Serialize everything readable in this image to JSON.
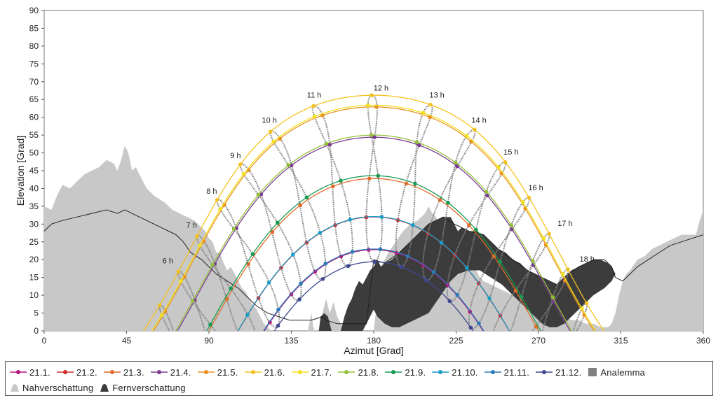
{
  "chart_data": {
    "type": "line",
    "xlabel": "Azimut [Grad]",
    "ylabel": "Elevation [Grad]",
    "xlim": [
      0,
      360
    ],
    "ylim": [
      0,
      90
    ],
    "x_ticks": [
      "0",
      "45",
      "90",
      "135",
      "180",
      "225",
      "270",
      "315",
      "360"
    ],
    "y_ticks": [
      "0",
      "5",
      "10",
      "15",
      "20",
      "25",
      "30",
      "35",
      "40",
      "45",
      "50",
      "55",
      "60",
      "65",
      "70",
      "75",
      "80",
      "85",
      "90"
    ],
    "grid": false,
    "legend_position": "bottom",
    "series": [
      {
        "name": "21.1.",
        "color": "#b5157a",
        "decl": -20.0,
        "eot": -11
      },
      {
        "name": "21.2.",
        "color": "#d22d2d",
        "decl": -10.8,
        "eot": -14
      },
      {
        "name": "21.3.",
        "color": "#e06a28",
        "decl": 0.0,
        "eot": -7
      },
      {
        "name": "21.4.",
        "color": "#7a3a92",
        "decl": 11.6,
        "eot": 1
      },
      {
        "name": "21.5.",
        "color": "#e89020",
        "decl": 20.1,
        "eot": 3
      },
      {
        "name": "21.6.",
        "color": "#f4c21e",
        "decl": 23.4,
        "eot": -2
      },
      {
        "name": "21.7.",
        "color": "#f2e11c",
        "decl": 20.6,
        "eot": -6
      },
      {
        "name": "21.8.",
        "color": "#93c03a",
        "decl": 12.2,
        "eot": -3
      },
      {
        "name": "21.9.",
        "color": "#159a52",
        "decl": 0.8,
        "eot": 7
      },
      {
        "name": "21.10.",
        "color": "#1a9ec7",
        "decl": -10.7,
        "eot": 15
      },
      {
        "name": "21.11.",
        "color": "#2a7ab8",
        "decl": -19.8,
        "eot": 14
      },
      {
        "name": "21.12.",
        "color": "#3d4891",
        "decl": -23.4,
        "eot": 2
      }
    ],
    "analemma": {
      "name": "Analemma",
      "color": "#808080"
    },
    "near_shading": {
      "name": "Nahverschattung",
      "color": "#c8c8c8",
      "points": [
        [
          0,
          35
        ],
        [
          4,
          34
        ],
        [
          7,
          38
        ],
        [
          10,
          41
        ],
        [
          14,
          40
        ],
        [
          18,
          42
        ],
        [
          22,
          44
        ],
        [
          26,
          45
        ],
        [
          30,
          46
        ],
        [
          34,
          48
        ],
        [
          38,
          47
        ],
        [
          40,
          45
        ],
        [
          42,
          48
        ],
        [
          44,
          52
        ],
        [
          46,
          50
        ],
        [
          48,
          45
        ],
        [
          50,
          46
        ],
        [
          52,
          44
        ],
        [
          54,
          42
        ],
        [
          56,
          40
        ],
        [
          58,
          39
        ],
        [
          60,
          38
        ],
        [
          63,
          37
        ],
        [
          66,
          36
        ],
        [
          70,
          34
        ],
        [
          74,
          33
        ],
        [
          78,
          32
        ],
        [
          82,
          31
        ],
        [
          86,
          29
        ],
        [
          88,
          28
        ],
        [
          90,
          26
        ],
        [
          92,
          25
        ],
        [
          94,
          22
        ],
        [
          96,
          22
        ],
        [
          98,
          19
        ],
        [
          100,
          17
        ],
        [
          102,
          18
        ],
        [
          104,
          16
        ],
        [
          106,
          14
        ],
        [
          108,
          12
        ],
        [
          110,
          11
        ],
        [
          113,
          8
        ],
        [
          116,
          6
        ],
        [
          118,
          4
        ],
        [
          120,
          2
        ],
        [
          122,
          1
        ],
        [
          124,
          0
        ],
        [
          140,
          0
        ],
        [
          144,
          0
        ],
        [
          146,
          5
        ],
        [
          147,
          1
        ],
        [
          148,
          0
        ],
        [
          150,
          0
        ],
        [
          152,
          5
        ],
        [
          154,
          9
        ],
        [
          156,
          5
        ],
        [
          158,
          8
        ],
        [
          160,
          4
        ],
        [
          162,
          2
        ],
        [
          164,
          0
        ],
        [
          180,
          0
        ],
        [
          184,
          18
        ],
        [
          188,
          22
        ],
        [
          192,
          25
        ],
        [
          196,
          28
        ],
        [
          200,
          30
        ],
        [
          204,
          31
        ],
        [
          208,
          33
        ],
        [
          210,
          35
        ],
        [
          212,
          33
        ],
        [
          214,
          32
        ],
        [
          216,
          30
        ],
        [
          218,
          28
        ],
        [
          220,
          27
        ],
        [
          222,
          25
        ],
        [
          224,
          23
        ],
        [
          226,
          22
        ],
        [
          228,
          23
        ],
        [
          230,
          21
        ],
        [
          232,
          20
        ],
        [
          234,
          18
        ],
        [
          236,
          17
        ],
        [
          238,
          15
        ],
        [
          240,
          14
        ],
        [
          244,
          13
        ],
        [
          248,
          12
        ],
        [
          252,
          11
        ],
        [
          256,
          10
        ],
        [
          260,
          9
        ],
        [
          264,
          8
        ],
        [
          268,
          7
        ],
        [
          272,
          6
        ],
        [
          276,
          6
        ],
        [
          280,
          5
        ],
        [
          284,
          4
        ],
        [
          288,
          3
        ],
        [
          292,
          3
        ],
        [
          296,
          2
        ],
        [
          300,
          2
        ],
        [
          304,
          1
        ],
        [
          308,
          1
        ],
        [
          310,
          2
        ],
        [
          312,
          5
        ],
        [
          314,
          10
        ],
        [
          316,
          14
        ],
        [
          318,
          16
        ],
        [
          320,
          17
        ],
        [
          324,
          20
        ],
        [
          328,
          21
        ],
        [
          332,
          23
        ],
        [
          336,
          24
        ],
        [
          340,
          25
        ],
        [
          344,
          26
        ],
        [
          348,
          27
        ],
        [
          352,
          27
        ],
        [
          356,
          27
        ],
        [
          358,
          31
        ],
        [
          360,
          34
        ]
      ]
    },
    "far_shading": {
      "name": "Fernverschattung",
      "color": "#3c3c3c",
      "points": [
        [
          150,
          0
        ],
        [
          151,
          4
        ],
        [
          153,
          5
        ],
        [
          155,
          4
        ],
        [
          157,
          0
        ],
        [
          162,
          0
        ],
        [
          164,
          4
        ],
        [
          166,
          7
        ],
        [
          168,
          9
        ],
        [
          170,
          12
        ],
        [
          172,
          14
        ],
        [
          174,
          13
        ],
        [
          176,
          15
        ],
        [
          178,
          17
        ],
        [
          180,
          18
        ],
        [
          182,
          20
        ],
        [
          184,
          18
        ],
        [
          186,
          19
        ],
        [
          190,
          20
        ],
        [
          194,
          22
        ],
        [
          198,
          24
        ],
        [
          202,
          26
        ],
        [
          206,
          28
        ],
        [
          210,
          30
        ],
        [
          214,
          31
        ],
        [
          218,
          32
        ],
        [
          222,
          32
        ],
        [
          224,
          30
        ],
        [
          226,
          28
        ],
        [
          228,
          29
        ],
        [
          232,
          28
        ],
        [
          236,
          28
        ],
        [
          240,
          27
        ],
        [
          244,
          25
        ],
        [
          248,
          23
        ],
        [
          252,
          22
        ],
        [
          256,
          20
        ],
        [
          260,
          19
        ],
        [
          264,
          17
        ],
        [
          268,
          16
        ],
        [
          272,
          15
        ],
        [
          276,
          14
        ],
        [
          280,
          13
        ],
        [
          284,
          15
        ],
        [
          288,
          17
        ],
        [
          292,
          18
        ],
        [
          296,
          19
        ],
        [
          300,
          20
        ],
        [
          304,
          20
        ],
        [
          308,
          19
        ],
        [
          310,
          18
        ],
        [
          312,
          16
        ],
        [
          310,
          14
        ],
        [
          306,
          12
        ],
        [
          300,
          10
        ],
        [
          296,
          8
        ],
        [
          292,
          6
        ],
        [
          288,
          4
        ],
        [
          284,
          2
        ],
        [
          280,
          1
        ],
        [
          276,
          1
        ],
        [
          272,
          2
        ],
        [
          268,
          4
        ],
        [
          262,
          7
        ],
        [
          256,
          10
        ],
        [
          250,
          13
        ],
        [
          244,
          15
        ],
        [
          238,
          17
        ],
        [
          232,
          17
        ],
        [
          226,
          16
        ],
        [
          222,
          14
        ],
        [
          218,
          11
        ],
        [
          214,
          8
        ],
        [
          210,
          5
        ],
        [
          206,
          4
        ],
        [
          202,
          3
        ],
        [
          198,
          2
        ],
        [
          194,
          1
        ],
        [
          190,
          1
        ],
        [
          186,
          2
        ],
        [
          182,
          4
        ],
        [
          180,
          6
        ],
        [
          178,
          4
        ],
        [
          176,
          2
        ],
        [
          174,
          0
        ],
        [
          150,
          0
        ]
      ]
    },
    "hour_labels": [
      {
        "text": "6 h",
        "az": 67.5,
        "el": 19.0
      },
      {
        "text": "7 h",
        "az": 80.5,
        "el": 29.0
      },
      {
        "text": "8 h",
        "az": 91.5,
        "el": 38.5
      },
      {
        "text": "9 h",
        "az": 104.5,
        "el": 48.5
      },
      {
        "text": "10 h",
        "az": 123.0,
        "el": 58.5
      },
      {
        "text": "11 h",
        "az": 147.5,
        "el": 65.5
      },
      {
        "text": "12 h",
        "az": 184.0,
        "el": 67.5
      },
      {
        "text": "13 h",
        "az": 214.5,
        "el": 65.5
      },
      {
        "text": "14 h",
        "az": 237.5,
        "el": 58.5
      },
      {
        "text": "15 h",
        "az": 255.0,
        "el": 49.5
      },
      {
        "text": "16 h",
        "az": 268.5,
        "el": 39.5
      },
      {
        "text": "17 h",
        "az": 284.5,
        "el": 29.5
      },
      {
        "text": "18 h",
        "az": 296.5,
        "el": 19.5
      }
    ]
  },
  "legend": {
    "row1": [
      "21.1.",
      "21.2.",
      "21.3.",
      "21.4.",
      "21.5.",
      "21.6.",
      "21.7.",
      "21.8.",
      "21.9.",
      "21.10.",
      "21.11.",
      "21.12.",
      "Analemma"
    ],
    "row2": [
      "Nahverschattung",
      "Fernverschattung"
    ]
  }
}
